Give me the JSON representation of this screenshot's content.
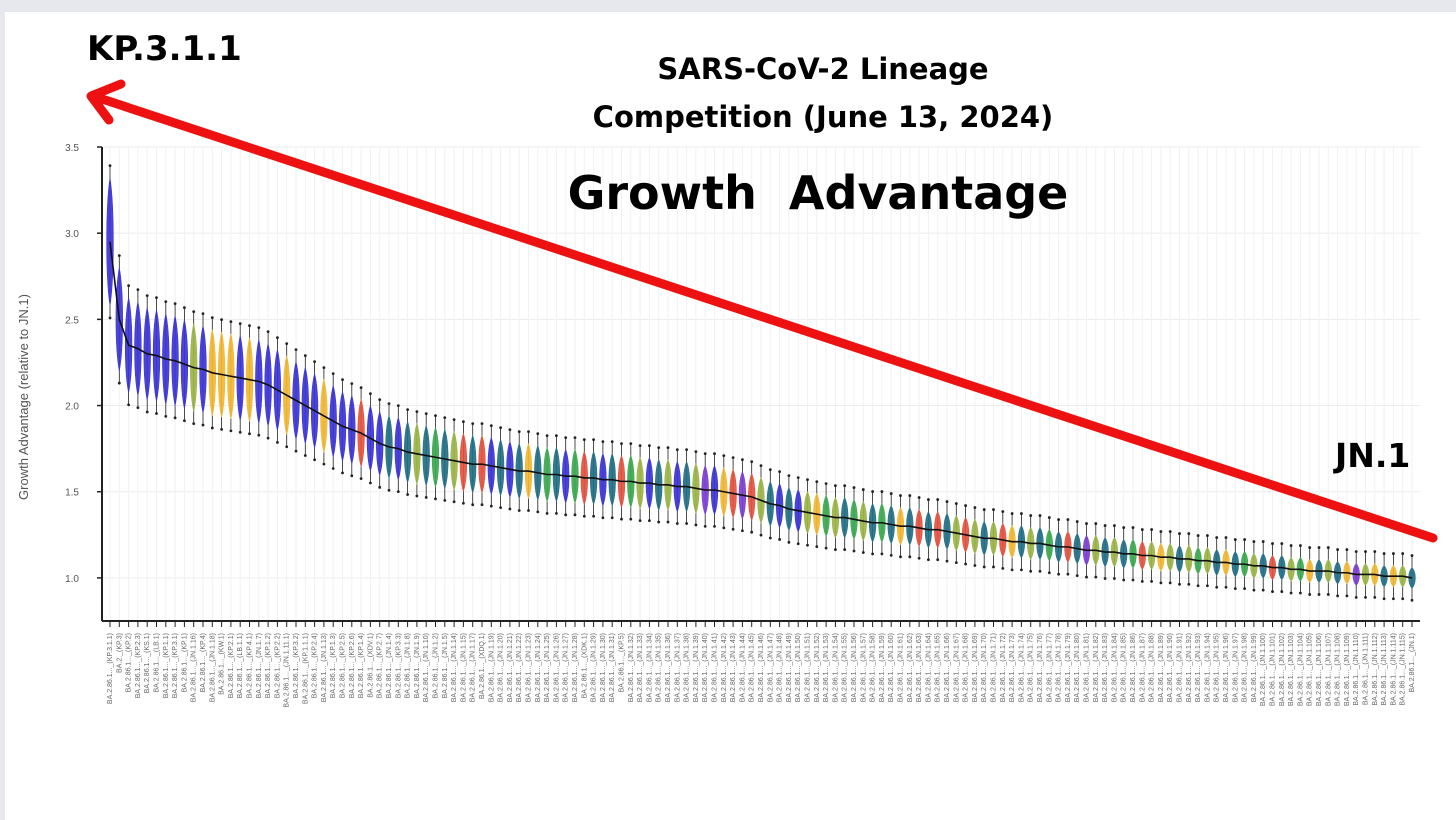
{
  "annotations": {
    "title_line1": "SARS-CoV-2 Lineage",
    "title_line2": "Competition (June 13, 2024)",
    "subtitle": "Growth  Advantage",
    "label_top": "KP.3.1.1",
    "label_bottom": "JN.1"
  },
  "colors": {
    "arrow": "#ee1111",
    "blue": "#3b34d6",
    "yellow": "#f2b733",
    "olive": "#9bb446",
    "teal": "#226f86",
    "red": "#e3533f",
    "green": "#3ca94f",
    "purple": "#7b3fd0"
  },
  "chart_data": {
    "type": "violin",
    "ylabel": "Growth Advantage (relative to JN.1)",
    "xlabel": "",
    "ylim": [
      0.75,
      3.5
    ],
    "yticks": [
      "1.0",
      "1.5",
      "2.0",
      "2.5",
      "3.0",
      "3.5"
    ],
    "grid": true,
    "points": [
      {
        "label": "BA.2.86.1..._(KP.3.1.1)",
        "value": 2.95,
        "color": "blue"
      },
      {
        "label": "BA.2._(KP.3)",
        "value": 2.5,
        "color": "blue"
      },
      {
        "label": "BA.2.86.1..._(KP.2)",
        "value": 2.35,
        "color": "blue"
      },
      {
        "label": "BA.2.86.1..._(KP.2.3)",
        "value": 2.33,
        "color": "blue"
      },
      {
        "label": "BA.2.86.1..._(KS.1)",
        "value": 2.3,
        "color": "blue"
      },
      {
        "label": "BA.2.86.1..._(LB.1)",
        "value": 2.29,
        "color": "blue"
      },
      {
        "label": "BA.2.86.1..._(KP.1.1)",
        "value": 2.27,
        "color": "blue"
      },
      {
        "label": "BA.2.86.1..._(KP.3.1)",
        "value": 2.26,
        "color": "blue"
      },
      {
        "label": "BA.2.86.1..._(KP.1)",
        "value": 2.24,
        "color": "blue"
      },
      {
        "label": "BA.2.86.1..._(JN.1.16)",
        "value": 2.22,
        "color": "olive"
      },
      {
        "label": "BA.2.86.1..._(KP.4)",
        "value": 2.21,
        "color": "blue"
      },
      {
        "label": "BA.2.86.1..._(JN.1.18)",
        "value": 2.19,
        "color": "yellow"
      },
      {
        "label": "BA.2.86.1..._(KW.1)",
        "value": 2.18,
        "color": "yellow"
      },
      {
        "label": "BA.2.86.1..._(KP.2.1)",
        "value": 2.17,
        "color": "yellow"
      },
      {
        "label": "BA.2.86.1..._(LB.1.1)",
        "value": 2.16,
        "color": "blue"
      },
      {
        "label": "BA.2.86.1..._(KP.4.1)",
        "value": 2.15,
        "color": "yellow"
      },
      {
        "label": "BA.2.86.1..._(JN.1.7)",
        "value": 2.14,
        "color": "blue"
      },
      {
        "label": "BA.2.86.1..._(KP.1.2)",
        "value": 2.12,
        "color": "blue"
      },
      {
        "label": "BA.2.86.1..._(KP.2.2)",
        "value": 2.09,
        "color": "blue"
      },
      {
        "label": "BA.2.86.1..._(JN.1.11.1)",
        "value": 2.06,
        "color": "yellow"
      },
      {
        "label": "BA.2.86.1..._(KP.3.2)",
        "value": 2.03,
        "color": "blue"
      },
      {
        "label": "BA.2.86.1..._(KP.1.1.1)",
        "value": 2.0,
        "color": "blue"
      },
      {
        "label": "BA.2.86.1..._(KP.2.4)",
        "value": 1.97,
        "color": "blue"
      },
      {
        "label": "BA.2.86.1..._(JN.1.13)",
        "value": 1.94,
        "color": "yellow"
      },
      {
        "label": "BA.2.86.1..._(KP.1.3)",
        "value": 1.91,
        "color": "blue"
      },
      {
        "label": "BA.2.86.1..._(KP.2.5)",
        "value": 1.88,
        "color": "blue"
      },
      {
        "label": "BA.2.86.1..._(KP.2.6)",
        "value": 1.86,
        "color": "blue"
      },
      {
        "label": "BA.2.86.1..._(KP.1.4)",
        "value": 1.84,
        "color": "red"
      },
      {
        "label": "BA.2.86.1..._(XDV.1)",
        "value": 1.81,
        "color": "blue"
      },
      {
        "label": "BA.2.86.1..._(KP.2.7)",
        "value": 1.78,
        "color": "blue"
      },
      {
        "label": "BA.2.86.1..._(JN.1.4)",
        "value": 1.76,
        "color": "teal"
      },
      {
        "label": "BA.2.86.1..._(KP.3.3)",
        "value": 1.75,
        "color": "blue"
      },
      {
        "label": "BA.2.86.1..._(JN.1.8)",
        "value": 1.73,
        "color": "teal"
      },
      {
        "label": "BA.2.86.1..._(JN.1.9)",
        "value": 1.72,
        "color": "olive"
      },
      {
        "label": "BA.2.86.1..._(JN.1.10)",
        "value": 1.71,
        "color": "teal"
      },
      {
        "label": "BA.2.86.1..._(JN.1.2)",
        "value": 1.7,
        "color": "green"
      },
      {
        "label": "BA.2.86.1..._(JN.1.5)",
        "value": 1.69,
        "color": "teal"
      },
      {
        "label": "BA.2.86.1..._(JN.1.14)",
        "value": 1.68,
        "color": "olive"
      },
      {
        "label": "BA.2.86.1..._(JN.1.15)",
        "value": 1.67,
        "color": "red"
      },
      {
        "label": "BA.2.86.1..._(JN.1.17)",
        "value": 1.66,
        "color": "teal"
      },
      {
        "label": "BA.2.86.1..._(XDQ.1)",
        "value": 1.66,
        "color": "red"
      },
      {
        "label": "BA.2.86.1..._(JN.1.19)",
        "value": 1.65,
        "color": "blue"
      },
      {
        "label": "BA.2.86.1..._(JN.1.20)",
        "value": 1.64,
        "color": "teal"
      },
      {
        "label": "BA.2.86.1..._(JN.1.21)",
        "value": 1.63,
        "color": "blue"
      },
      {
        "label": "BA.2.86.1..._(JN.1.22)",
        "value": 1.62,
        "color": "teal"
      },
      {
        "label": "BA.2.86.1..._(JN.1.23)",
        "value": 1.62,
        "color": "yellow"
      },
      {
        "label": "BA.2.86.1..._(JN.1.24)",
        "value": 1.61,
        "color": "teal"
      },
      {
        "label": "BA.2.86.1..._(JN.1.25)",
        "value": 1.6,
        "color": "green"
      },
      {
        "label": "BA.2.86.1..._(JN.1.26)",
        "value": 1.6,
        "color": "teal"
      },
      {
        "label": "BA.2.86.1..._(JN.1.27)",
        "value": 1.59,
        "color": "blue"
      },
      {
        "label": "BA.2.86.1..._(JN.1.28)",
        "value": 1.59,
        "color": "green"
      },
      {
        "label": "BA.2.86.1..._(XDK.1)",
        "value": 1.58,
        "color": "red"
      },
      {
        "label": "BA.2.86.1..._(JN.1.29)",
        "value": 1.58,
        "color": "teal"
      },
      {
        "label": "BA.2.86.1..._(JN.1.30)",
        "value": 1.57,
        "color": "blue"
      },
      {
        "label": "BA.2.86.1..._(JN.1.31)",
        "value": 1.57,
        "color": "teal"
      },
      {
        "label": "BA.2.86.1..._(KP.5)",
        "value": 1.56,
        "color": "red"
      },
      {
        "label": "BA.2.86.1..._(JN.1.32)",
        "value": 1.56,
        "color": "green"
      },
      {
        "label": "BA.2.86.1..._(JN.1.33)",
        "value": 1.55,
        "color": "olive"
      },
      {
        "label": "BA.2.86.1..._(JN.1.34)",
        "value": 1.55,
        "color": "blue"
      },
      {
        "label": "BA.2.86.1..._(JN.1.35)",
        "value": 1.54,
        "color": "teal"
      },
      {
        "label": "BA.2.86.1..._(JN.1.36)",
        "value": 1.54,
        "color": "olive"
      },
      {
        "label": "BA.2.86.1..._(JN.1.37)",
        "value": 1.53,
        "color": "blue"
      },
      {
        "label": "BA.2.86.1..._(JN.1.38)",
        "value": 1.53,
        "color": "teal"
      },
      {
        "label": "BA.2.86.1..._(JN.1.39)",
        "value": 1.52,
        "color": "olive"
      },
      {
        "label": "BA.2.86.1..._(JN.1.40)",
        "value": 1.51,
        "color": "purple"
      },
      {
        "label": "BA.2.86.1..._(JN.1.41)",
        "value": 1.51,
        "color": "blue"
      },
      {
        "label": "BA.2.86.1..._(JN.1.42)",
        "value": 1.5,
        "color": "yellow"
      },
      {
        "label": "BA.2.86.1..._(JN.1.43)",
        "value": 1.49,
        "color": "red"
      },
      {
        "label": "BA.2.86.1..._(JN.1.44)",
        "value": 1.48,
        "color": "purple"
      },
      {
        "label": "BA.2.86.1..._(JN.1.45)",
        "value": 1.47,
        "color": "red"
      },
      {
        "label": "BA.2.86.1..._(JN.1.46)",
        "value": 1.45,
        "color": "olive"
      },
      {
        "label": "BA.2.86.1..._(JN.1.47)",
        "value": 1.43,
        "color": "teal"
      },
      {
        "label": "BA.2.86.1..._(JN.1.48)",
        "value": 1.42,
        "color": "blue"
      },
      {
        "label": "BA.2.86.1..._(JN.1.49)",
        "value": 1.4,
        "color": "teal"
      },
      {
        "label": "BA.2.86.1..._(JN.1.50)",
        "value": 1.39,
        "color": "blue"
      },
      {
        "label": "BA.2.86.1..._(JN.1.51)",
        "value": 1.38,
        "color": "olive"
      },
      {
        "label": "BA.2.86.1..._(JN.1.52)",
        "value": 1.37,
        "color": "yellow"
      },
      {
        "label": "BA.2.86.1..._(JN.1.53)",
        "value": 1.36,
        "color": "green"
      },
      {
        "label": "BA.2.86.1..._(JN.1.54)",
        "value": 1.35,
        "color": "olive"
      },
      {
        "label": "BA.2.86.1..._(JN.1.55)",
        "value": 1.35,
        "color": "teal"
      },
      {
        "label": "BA.2.86.1..._(JN.1.56)",
        "value": 1.34,
        "color": "green"
      },
      {
        "label": "BA.2.86.1..._(JN.1.57)",
        "value": 1.33,
        "color": "olive"
      },
      {
        "label": "BA.2.86.1..._(JN.1.58)",
        "value": 1.32,
        "color": "teal"
      },
      {
        "label": "BA.2.86.1..._(JN.1.59)",
        "value": 1.32,
        "color": "green"
      },
      {
        "label": "BA.2.86.1..._(JN.1.60)",
        "value": 1.31,
        "color": "teal"
      },
      {
        "label": "BA.2.86.1..._(JN.1.61)",
        "value": 1.3,
        "color": "yellow"
      },
      {
        "label": "BA.2.86.1..._(JN.1.62)",
        "value": 1.3,
        "color": "teal"
      },
      {
        "label": "BA.2.86.1..._(JN.1.63)",
        "value": 1.29,
        "color": "red"
      },
      {
        "label": "BA.2.86.1..._(JN.1.64)",
        "value": 1.28,
        "color": "teal"
      },
      {
        "label": "BA.2.86.1..._(JN.1.65)",
        "value": 1.28,
        "color": "red"
      },
      {
        "label": "BA.2.86.1..._(JN.1.66)",
        "value": 1.27,
        "color": "teal"
      },
      {
        "label": "BA.2.86.1..._(JN.1.67)",
        "value": 1.26,
        "color": "olive"
      },
      {
        "label": "BA.2.86.1..._(JN.1.68)",
        "value": 1.25,
        "color": "red"
      },
      {
        "label": "BA.2.86.1..._(JN.1.69)",
        "value": 1.24,
        "color": "olive"
      },
      {
        "label": "BA.2.86.1..._(JN.1.70)",
        "value": 1.23,
        "color": "teal"
      },
      {
        "label": "BA.2.86.1..._(JN.1.71)",
        "value": 1.23,
        "color": "olive"
      },
      {
        "label": "BA.2.86.1..._(JN.1.72)",
        "value": 1.22,
        "color": "red"
      },
      {
        "label": "BA.2.86.1..._(JN.1.73)",
        "value": 1.21,
        "color": "yellow"
      },
      {
        "label": "BA.2.86.1..._(JN.1.74)",
        "value": 1.21,
        "color": "teal"
      },
      {
        "label": "BA.2.86.1..._(JN.1.75)",
        "value": 1.2,
        "color": "olive"
      },
      {
        "label": "BA.2.86.1..._(JN.1.76)",
        "value": 1.2,
        "color": "teal"
      },
      {
        "label": "BA.2.86.1..._(JN.1.77)",
        "value": 1.19,
        "color": "green"
      },
      {
        "label": "BA.2.86.1..._(JN.1.78)",
        "value": 1.18,
        "color": "teal"
      },
      {
        "label": "BA.2.86.1..._(JN.1.79)",
        "value": 1.18,
        "color": "red"
      },
      {
        "label": "BA.2.86.1..._(JN.1.80)",
        "value": 1.17,
        "color": "teal"
      },
      {
        "label": "BA.2.86.1..._(JN.1.81)",
        "value": 1.16,
        "color": "purple"
      },
      {
        "label": "BA.2.86.1..._(JN.1.82)",
        "value": 1.16,
        "color": "olive"
      },
      {
        "label": "BA.2.86.1..._(JN.1.83)",
        "value": 1.15,
        "color": "teal"
      },
      {
        "label": "BA.2.86.1..._(JN.1.84)",
        "value": 1.15,
        "color": "olive"
      },
      {
        "label": "BA.2.86.1..._(JN.1.85)",
        "value": 1.14,
        "color": "teal"
      },
      {
        "label": "BA.2.86.1..._(JN.1.86)",
        "value": 1.14,
        "color": "green"
      },
      {
        "label": "BA.2.86.1..._(JN.1.87)",
        "value": 1.13,
        "color": "red"
      },
      {
        "label": "BA.2.86.1..._(JN.1.88)",
        "value": 1.13,
        "color": "olive"
      },
      {
        "label": "BA.2.86.1..._(JN.1.89)",
        "value": 1.12,
        "color": "yellow"
      },
      {
        "label": "BA.2.86.1..._(JN.1.90)",
        "value": 1.12,
        "color": "olive"
      },
      {
        "label": "BA.2.86.1..._(JN.1.91)",
        "value": 1.11,
        "color": "teal"
      },
      {
        "label": "BA.2.86.1..._(JN.1.92)",
        "value": 1.11,
        "color": "olive"
      },
      {
        "label": "BA.2.86.1..._(JN.1.93)",
        "value": 1.1,
        "color": "green"
      },
      {
        "label": "BA.2.86.1..._(JN.1.94)",
        "value": 1.1,
        "color": "olive"
      },
      {
        "label": "BA.2.86.1..._(JN.1.95)",
        "value": 1.09,
        "color": "teal"
      },
      {
        "label": "BA.2.86.1..._(JN.1.96)",
        "value": 1.09,
        "color": "yellow"
      },
      {
        "label": "BA.2.86.1..._(JN.1.97)",
        "value": 1.08,
        "color": "teal"
      },
      {
        "label": "BA.2.86.1..._(JN.1.98)",
        "value": 1.08,
        "color": "green"
      },
      {
        "label": "BA.2.86.1..._(JN.1.99)",
        "value": 1.07,
        "color": "olive"
      },
      {
        "label": "BA.2.86.1..._(JN.1.100)",
        "value": 1.07,
        "color": "teal"
      },
      {
        "label": "BA.2.86.1..._(JN.1.101)",
        "value": 1.06,
        "color": "red"
      },
      {
        "label": "BA.2.86.1..._(JN.1.102)",
        "value": 1.06,
        "color": "teal"
      },
      {
        "label": "BA.2.86.1..._(JN.1.103)",
        "value": 1.05,
        "color": "olive"
      },
      {
        "label": "BA.2.86.1..._(JN.1.104)",
        "value": 1.05,
        "color": "green"
      },
      {
        "label": "BA.2.86.1..._(JN.1.105)",
        "value": 1.04,
        "color": "yellow"
      },
      {
        "label": "BA.2.86.1..._(JN.1.106)",
        "value": 1.04,
        "color": "teal"
      },
      {
        "label": "BA.2.86.1..._(JN.1.107)",
        "value": 1.04,
        "color": "olive"
      },
      {
        "label": "BA.2.86.1..._(JN.1.108)",
        "value": 1.03,
        "color": "teal"
      },
      {
        "label": "BA.2.86.1..._(JN.1.109)",
        "value": 1.03,
        "color": "yellow"
      },
      {
        "label": "BA.2.86.1..._(JN.1.110)",
        "value": 1.02,
        "color": "purple"
      },
      {
        "label": "BA.2.86.1..._(JN.1.111)",
        "value": 1.02,
        "color": "olive"
      },
      {
        "label": "BA.2.86.1..._(JN.1.112)",
        "value": 1.02,
        "color": "yellow"
      },
      {
        "label": "BA.2.86.1..._(JN.1.113)",
        "value": 1.01,
        "color": "teal"
      },
      {
        "label": "BA.2.86.1..._(JN.1.114)",
        "value": 1.01,
        "color": "yellow"
      },
      {
        "label": "BA.2.86.1..._(JN.1.115)",
        "value": 1.01,
        "color": "olive"
      },
      {
        "label": "BA.2.86.1..._(JN.1)",
        "value": 1.0,
        "color": "teal"
      }
    ]
  }
}
